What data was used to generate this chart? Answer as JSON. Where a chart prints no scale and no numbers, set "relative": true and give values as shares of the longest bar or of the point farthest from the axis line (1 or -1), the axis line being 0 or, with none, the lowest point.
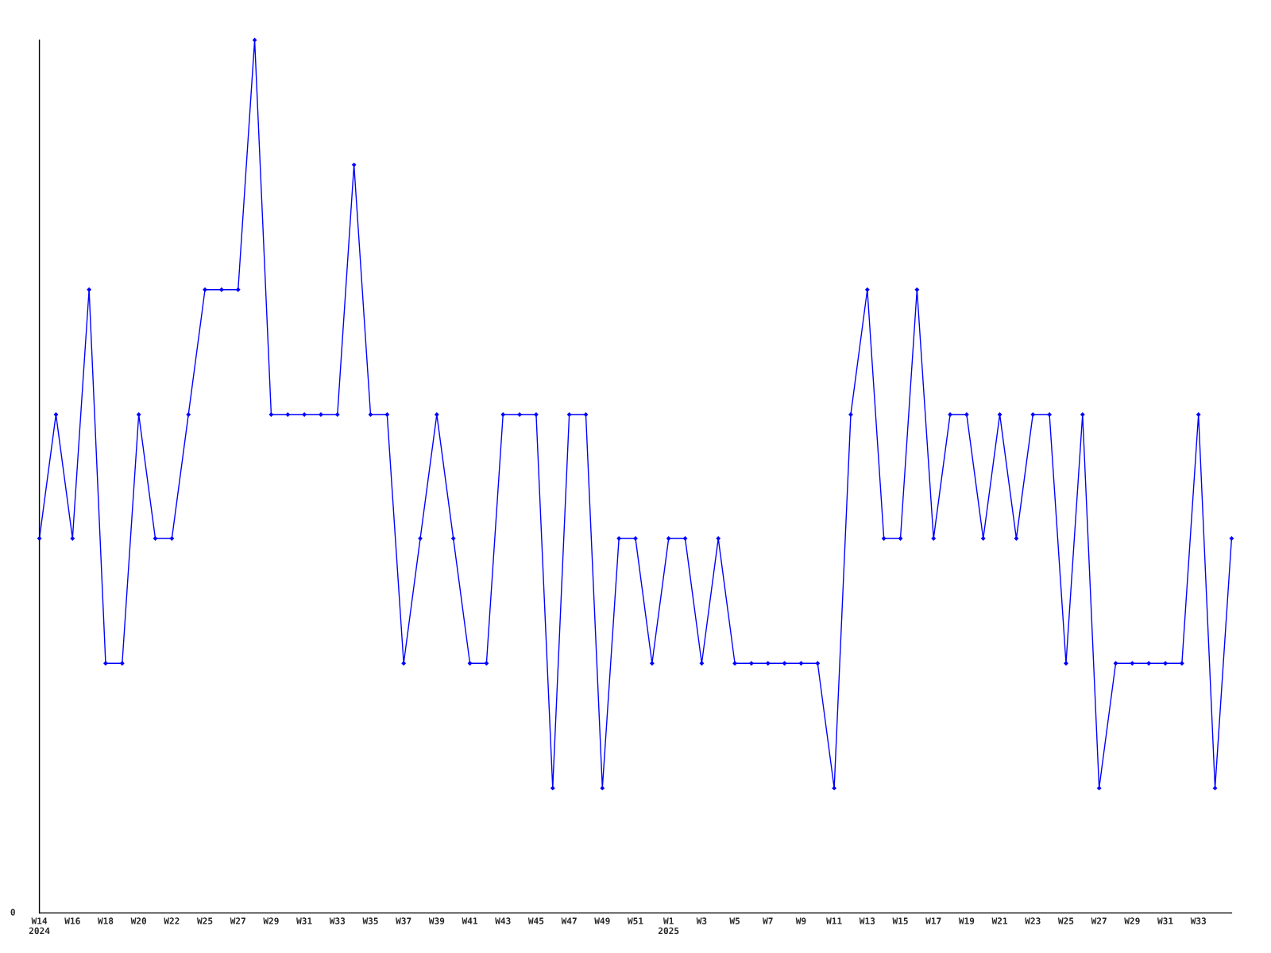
{
  "chart_data": {
    "type": "line",
    "relative": true,
    "categories": [
      "W14\n2024",
      null,
      "W16",
      null,
      "W18",
      null,
      "W20",
      null,
      "W22",
      null,
      "W25",
      null,
      "W27",
      null,
      "W29",
      null,
      "W31",
      null,
      "W33",
      null,
      "W35",
      null,
      "W37",
      null,
      "W39",
      null,
      "W41",
      null,
      "W43",
      null,
      "W45",
      null,
      "W47",
      null,
      "W49",
      null,
      "W51",
      null,
      "W1\n2025",
      null,
      "W3",
      null,
      "W5",
      null,
      "W7",
      null,
      "W9",
      null,
      "W11",
      null,
      "W13",
      null,
      "W15",
      null,
      "W17",
      null,
      "W19",
      null,
      "W21",
      null,
      "W23",
      null,
      "W25",
      null,
      "W27",
      null,
      "W29",
      null,
      "W31",
      null,
      "W33",
      null,
      null
    ],
    "series": [
      {
        "color": "#0000ff",
        "values": [
          0.429,
          0.571,
          0.429,
          0.714,
          0.286,
          0.286,
          0.571,
          0.429,
          0.429,
          0.571,
          0.714,
          0.714,
          0.714,
          1,
          0.571,
          0.571,
          0.571,
          0.571,
          0.571,
          0.857,
          0.571,
          0.571,
          0.286,
          0.429,
          0.571,
          0.429,
          0.286,
          0.286,
          0.571,
          0.571,
          0.571,
          0.143,
          0.571,
          0.571,
          0.143,
          0.429,
          0.429,
          0.286,
          0.429,
          0.429,
          0.286,
          0.429,
          0.286,
          0.286,
          0.286,
          0.286,
          0.286,
          0.286,
          0.143,
          0.571,
          0.714,
          0.429,
          0.429,
          0.714,
          0.429,
          0.571,
          0.571,
          0.429,
          0.571,
          0.429,
          0.571,
          0.571,
          0.286,
          0.571,
          0.143,
          0.286,
          0.286,
          0.286,
          0.286,
          0.286,
          0.571,
          0.143,
          0.429
        ]
      }
    ],
    "marker": "diamond",
    "line_style": "solid",
    "grid": false,
    "annotations": [
      "0"
    ]
  }
}
